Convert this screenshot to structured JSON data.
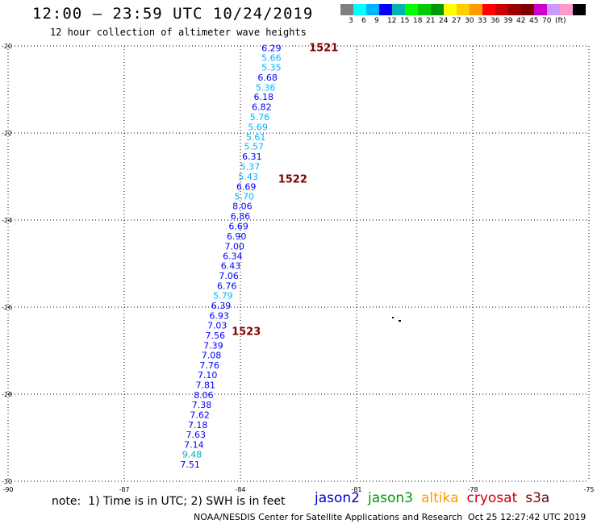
{
  "header": {
    "title": "12:00 — 23:59 UTC 10/24/2019",
    "subtitle": "12 hour collection of altimeter wave heights"
  },
  "legend": {
    "colors": [
      "#808080",
      "#00ffff",
      "#00b2ff",
      "#0000ff",
      "#00b2b2",
      "#00ff00",
      "#00cc00",
      "#009900",
      "#ffff00",
      "#ffcc00",
      "#ff9900",
      "#ff0000",
      "#cc0000",
      "#990000",
      "#800000",
      "#cc00cc",
      "#cc99ff",
      "#ff99cc",
      "#000000"
    ],
    "labels": [
      "3",
      "6",
      "9",
      "12",
      "15",
      "18",
      "21",
      "24",
      "27",
      "30",
      "33",
      "36",
      "39",
      "42",
      "45",
      "70",
      "(ft)"
    ]
  },
  "chart_data": {
    "type": "scatter",
    "xlim": [
      -90,
      -75
    ],
    "ylim": [
      -30,
      -20
    ],
    "x_ticks": [
      "-90",
      "-87",
      "-84",
      "-81",
      "-78",
      "-75"
    ],
    "y_ticks": [
      "-20",
      "-22",
      "-24",
      "-26",
      "-28",
      "-30"
    ],
    "grid": true,
    "points": [
      {
        "lon": -83.2,
        "lat": -20.05,
        "label": "6.29"
      },
      {
        "lon": -83.2,
        "lat": -20.27,
        "label": "5.66"
      },
      {
        "lon": -83.2,
        "lat": -20.49,
        "label": "5.35"
      },
      {
        "lon": -83.3,
        "lat": -20.72,
        "label": "6.68"
      },
      {
        "lon": -83.35,
        "lat": -20.95,
        "label": "5.36"
      },
      {
        "lon": -83.4,
        "lat": -21.17,
        "label": "6.18"
      },
      {
        "lon": -83.45,
        "lat": -21.4,
        "label": "6.82"
      },
      {
        "lon": -83.5,
        "lat": -21.63,
        "label": "5.76"
      },
      {
        "lon": -83.55,
        "lat": -21.86,
        "label": "5.69"
      },
      {
        "lon": -83.6,
        "lat": -22.09,
        "label": "5.61"
      },
      {
        "lon": -83.65,
        "lat": -22.31,
        "label": "5.57"
      },
      {
        "lon": -83.7,
        "lat": -22.54,
        "label": "6.31"
      },
      {
        "lon": -83.75,
        "lat": -22.77,
        "label": "5.37"
      },
      {
        "lon": -83.8,
        "lat": -23.0,
        "label": "5.43"
      },
      {
        "lon": -83.85,
        "lat": -23.23,
        "label": "6.69"
      },
      {
        "lon": -83.9,
        "lat": -23.45,
        "label": "5.70"
      },
      {
        "lon": -83.95,
        "lat": -23.68,
        "label": "8.06"
      },
      {
        "lon": -84.0,
        "lat": -23.91,
        "label": "6.86"
      },
      {
        "lon": -84.05,
        "lat": -24.14,
        "label": "6.69"
      },
      {
        "lon": -84.1,
        "lat": -24.37,
        "label": "6.90"
      },
      {
        "lon": -84.15,
        "lat": -24.6,
        "label": "7.00"
      },
      {
        "lon": -84.2,
        "lat": -24.82,
        "label": "6.34"
      },
      {
        "lon": -84.25,
        "lat": -25.05,
        "label": "6.43"
      },
      {
        "lon": -84.3,
        "lat": -25.28,
        "label": "7.06"
      },
      {
        "lon": -84.35,
        "lat": -25.51,
        "label": "6.76"
      },
      {
        "lon": -84.45,
        "lat": -25.73,
        "label": "5.79"
      },
      {
        "lon": -84.5,
        "lat": -25.96,
        "label": "6.39"
      },
      {
        "lon": -84.55,
        "lat": -26.19,
        "label": "6.93"
      },
      {
        "lon": -84.6,
        "lat": -26.42,
        "label": "7.03"
      },
      {
        "lon": -84.65,
        "lat": -26.65,
        "label": "7.56"
      },
      {
        "lon": -84.7,
        "lat": -26.88,
        "label": "7.39"
      },
      {
        "lon": -84.75,
        "lat": -27.1,
        "label": "7.08"
      },
      {
        "lon": -84.8,
        "lat": -27.33,
        "label": "7.76"
      },
      {
        "lon": -84.85,
        "lat": -27.56,
        "label": "7.10"
      },
      {
        "lon": -84.9,
        "lat": -27.79,
        "label": "7.81"
      },
      {
        "lon": -84.95,
        "lat": -28.02,
        "label": "8.06"
      },
      {
        "lon": -85.0,
        "lat": -28.24,
        "label": "7.38"
      },
      {
        "lon": -85.05,
        "lat": -28.47,
        "label": "7.62"
      },
      {
        "lon": -85.1,
        "lat": -28.7,
        "label": "7.18"
      },
      {
        "lon": -85.15,
        "lat": -28.93,
        "label": "7.63"
      },
      {
        "lon": -85.2,
        "lat": -29.16,
        "label": "7.14"
      },
      {
        "lon": -85.25,
        "lat": -29.38,
        "label": "9.48"
      },
      {
        "lon": -85.3,
        "lat": -29.61,
        "label": "7.51"
      }
    ],
    "pass_labels": [
      {
        "lon": -81.85,
        "lat": -20.03,
        "label": "1521"
      },
      {
        "lon": -82.65,
        "lat": -23.05,
        "label": "1522"
      },
      {
        "lon": -83.85,
        "lat": -26.55,
        "label": "1523"
      }
    ]
  },
  "note": "note:  1) Time is in UTC; 2) SWH is in feet",
  "missions": [
    {
      "name": "jason2",
      "color": "#0000cc"
    },
    {
      "name": "jason3",
      "color": "#009900"
    },
    {
      "name": "altika",
      "color": "#ff9900"
    },
    {
      "name": "cryosat",
      "color": "#cc0000"
    },
    {
      "name": "s3a",
      "color": "#800000"
    }
  ],
  "footer": {
    "left": "NOAA/NESDIS Center for Satellite Applications and Research",
    "right": "Oct 25 12:27:42 UTC 2019"
  }
}
